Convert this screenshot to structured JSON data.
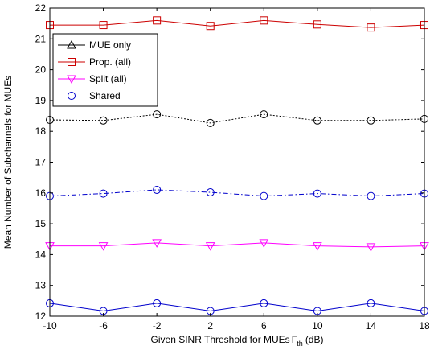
{
  "chart_data": {
    "type": "line",
    "xlabel": "Given SINR Threshold for MUEs",
    "xlabel_symbol": "Γ",
    "xlabel_sub": "th",
    "xlabel_unit": "(dB)",
    "ylabel": "Mean Number of Subchannels for MUEs",
    "x": [
      -10,
      -6,
      -2,
      2,
      6,
      10,
      14,
      18
    ],
    "xlim": [
      -10,
      18
    ],
    "ylim": [
      12,
      22
    ],
    "xticks": [
      "-10",
      "-6",
      "-2",
      "2",
      "6",
      "10",
      "14",
      "18"
    ],
    "yticks": [
      "12",
      "13",
      "14",
      "15",
      "16",
      "17",
      "18",
      "19",
      "20",
      "21",
      "22"
    ],
    "grid": false,
    "legend_position": "top-left",
    "legend": [
      {
        "label": "MUE only",
        "marker": "triangle-up",
        "color": "#000000",
        "line": "solid"
      },
      {
        "label": "Prop. (all)",
        "marker": "square",
        "color": "#cc0000",
        "line": "solid"
      },
      {
        "label": "Split (all)",
        "marker": "triangle-down",
        "color": "#ff00ff",
        "line": "solid"
      },
      {
        "label": "Shared",
        "marker": "circle",
        "color": "#0000cc",
        "line": "none"
      }
    ],
    "series": [
      {
        "marker": "square",
        "color": "#cc0000",
        "dash": "solid",
        "values": [
          21.45,
          21.45,
          21.6,
          21.42,
          21.6,
          21.47,
          21.37,
          21.45
        ]
      },
      {
        "marker": "circle",
        "color": "#000000",
        "dash": "dotted",
        "values": [
          18.37,
          18.35,
          18.55,
          18.27,
          18.55,
          18.35,
          18.35,
          18.4
        ]
      },
      {
        "marker": "circle",
        "color": "#0000cc",
        "dash": "dashdot",
        "values": [
          15.9,
          15.98,
          16.1,
          16.02,
          15.9,
          15.98,
          15.9,
          15.98
        ]
      },
      {
        "marker": "triangle-down",
        "color": "#ff00ff",
        "dash": "solid",
        "values": [
          14.28,
          14.28,
          14.38,
          14.28,
          14.38,
          14.28,
          14.25,
          14.28
        ]
      },
      {
        "marker": "circle",
        "color": "#0000cc",
        "dash": "solid",
        "values": [
          12.42,
          12.17,
          12.42,
          12.17,
          12.42,
          12.17,
          12.42,
          12.17
        ]
      }
    ]
  }
}
